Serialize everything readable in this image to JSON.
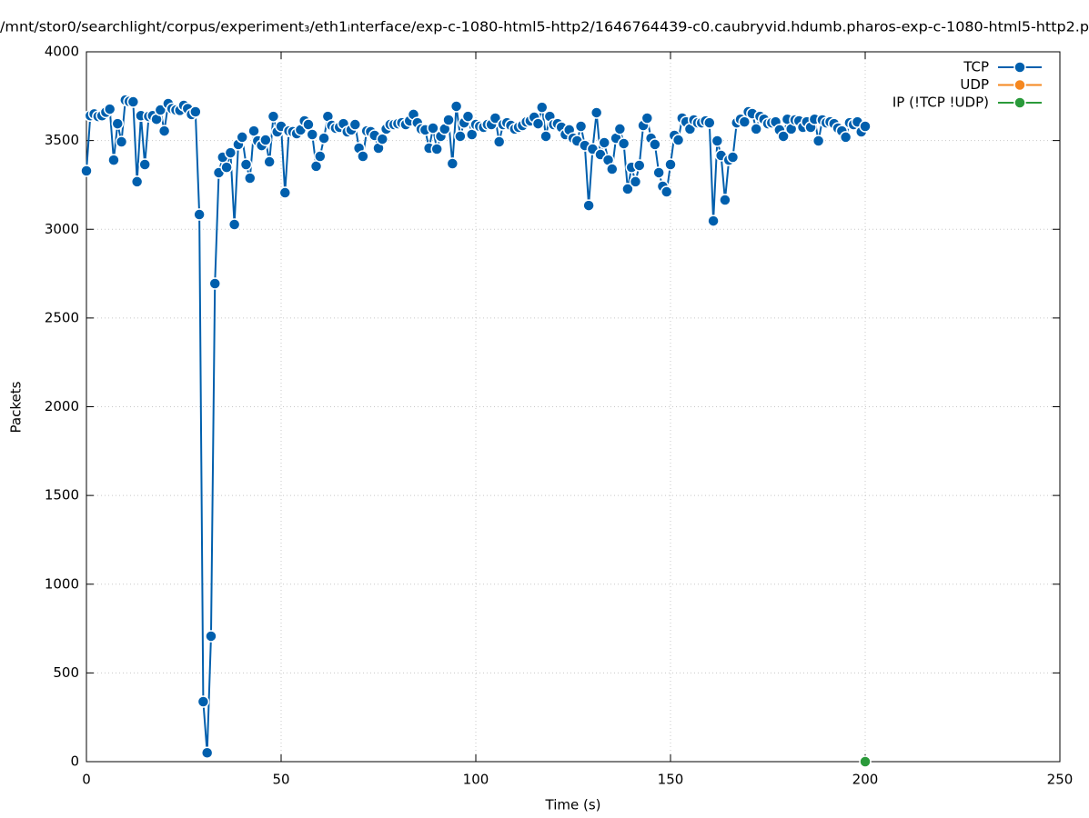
{
  "chart_data": {
    "type": "line",
    "title": "/mnt/stor0/searchlight/corpus/experiment₃/eth1ᵢnterface/exp-c-1080-html5-http2/1646764439-c0.caubryvid.hdumb.pharos-exp-c-1080-html5-http2.p",
    "x_label": "Time (s)",
    "y_label": "Packets",
    "xlim": [
      0,
      250
    ],
    "xticks": [
      0,
      50,
      100,
      150,
      200,
      250
    ],
    "ylim": [
      0,
      4000
    ],
    "yticks": [
      0,
      500,
      1000,
      1500,
      2000,
      2500,
      3000,
      3500,
      4000
    ],
    "grid": true,
    "legend": "top-right",
    "series": [
      {
        "name": "TCP",
        "color": "#005fad",
        "x": [
          0,
          1,
          2,
          3,
          4,
          5,
          6,
          7,
          8,
          9,
          10,
          11,
          12,
          13,
          14,
          15,
          16,
          17,
          18,
          19,
          20,
          21,
          22,
          23,
          24,
          25,
          26,
          27,
          28,
          29,
          30,
          31,
          32,
          33,
          34,
          35,
          36,
          37,
          38,
          39,
          40,
          41,
          42,
          43,
          44,
          45,
          46,
          47,
          48,
          49,
          50,
          51,
          52,
          53,
          54,
          55,
          56,
          57,
          58,
          59,
          60,
          61,
          62,
          63,
          64,
          65,
          66,
          67,
          68,
          69,
          70,
          71,
          72,
          73,
          74,
          75,
          76,
          77,
          78,
          79,
          80,
          81,
          82,
          83,
          84,
          85,
          86,
          87,
          88,
          89,
          90,
          91,
          92,
          93,
          94,
          95,
          96,
          97,
          98,
          99,
          100,
          101,
          102,
          103,
          104,
          105,
          106,
          107,
          108,
          109,
          110,
          111,
          112,
          113,
          114,
          115,
          116,
          117,
          118,
          119,
          120,
          121,
          122,
          123,
          124,
          125,
          126,
          127,
          128,
          129,
          130,
          131,
          132,
          133,
          134,
          135,
          136,
          137,
          138,
          139,
          140,
          141,
          142,
          143,
          144,
          145,
          146,
          147,
          148,
          149,
          150,
          151,
          152,
          153,
          154,
          155,
          156,
          157,
          158,
          159,
          160,
          161,
          162,
          163,
          164,
          165,
          166,
          167,
          168,
          169,
          170,
          171,
          172,
          173,
          174,
          175,
          176,
          177,
          178,
          179,
          180,
          181,
          182,
          183,
          184,
          185,
          186,
          187,
          188,
          189,
          190,
          191,
          192,
          193,
          194,
          195,
          196,
          197,
          198,
          199,
          200
        ],
        "values": [
          3329,
          3640,
          3650,
          3636,
          3640,
          3660,
          3677,
          3390,
          3595,
          3493,
          3728,
          3720,
          3718,
          3268,
          3640,
          3365,
          3636,
          3640,
          3620,
          3672,
          3554,
          3708,
          3680,
          3672,
          3670,
          3698,
          3680,
          3647,
          3662,
          3083,
          338,
          50,
          707,
          2694,
          3319,
          3406,
          3349,
          3431,
          3027,
          3478,
          3519,
          3365,
          3288,
          3554,
          3498,
          3472,
          3503,
          3380,
          3636,
          3549,
          3580,
          3206,
          3554,
          3550,
          3539,
          3560,
          3611,
          3590,
          3534,
          3355,
          3411,
          3513,
          3636,
          3585,
          3570,
          3575,
          3595,
          3549,
          3560,
          3590,
          3457,
          3411,
          3554,
          3550,
          3529,
          3457,
          3508,
          3565,
          3590,
          3590,
          3595,
          3600,
          3590,
          3611,
          3647,
          3600,
          3565,
          3560,
          3457,
          3570,
          3452,
          3524,
          3565,
          3616,
          3370,
          3693,
          3524,
          3600,
          3636,
          3534,
          3590,
          3580,
          3575,
          3590,
          3590,
          3626,
          3493,
          3590,
          3600,
          3585,
          3565,
          3575,
          3585,
          3605,
          3611,
          3631,
          3595,
          3687,
          3524,
          3636,
          3590,
          3595,
          3575,
          3534,
          3560,
          3513,
          3498,
          3580,
          3472,
          3134,
          3452,
          3657,
          3421,
          3488,
          3390,
          3339,
          3513,
          3565,
          3483,
          3227,
          3349,
          3268,
          3360,
          3585,
          3626,
          3513,
          3478,
          3319,
          3242,
          3211,
          3365,
          3529,
          3503,
          3626,
          3605,
          3565,
          3616,
          3600,
          3600,
          3610,
          3600,
          3047,
          3498,
          3416,
          3165,
          3390,
          3406,
          3600,
          3620,
          3605,
          3662,
          3652,
          3565,
          3636,
          3620,
          3595,
          3600,
          3605,
          3560,
          3524,
          3620,
          3565,
          3616,
          3611,
          3575,
          3605,
          3575,
          3620,
          3498,
          3616,
          3600,
          3605,
          3595,
          3570,
          3554,
          3519,
          3600,
          3590,
          3605,
          3549,
          3580
        ]
      },
      {
        "name": "UDP",
        "color": "#f5871f",
        "x": [],
        "values": []
      },
      {
        "name": "IP (!TCP  !UDP)",
        "color": "#2a9a3a",
        "x": [
          200
        ],
        "values": [
          0
        ]
      }
    ]
  }
}
